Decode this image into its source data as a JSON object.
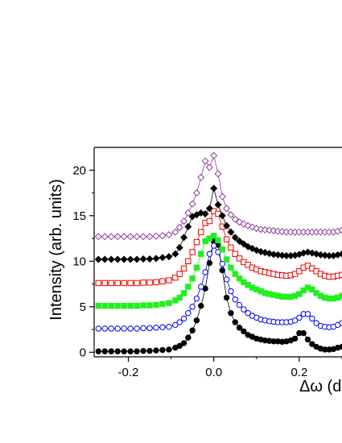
{
  "chart_data": {
    "type": "scatter",
    "title": "",
    "xlabel": "Δω (d",
    "ylabel": "Intensity (arb. units)",
    "xlim": [
      -0.28,
      0.3
    ],
    "ylim": [
      -0.5,
      22.5
    ],
    "xticks": [
      -0.2,
      0.0,
      0.2
    ],
    "xtick_labels": [
      "-0.2",
      "0.0",
      "0.2"
    ],
    "yticks": [
      0,
      5,
      10,
      15,
      20
    ],
    "ytick_labels": [
      "0",
      "5",
      "10",
      "15",
      "20"
    ],
    "grid": false,
    "legend": "none",
    "series": [
      {
        "marker": "filled-circle",
        "color": "#000000",
        "x": [
          -0.27,
          -0.255,
          -0.24,
          -0.225,
          -0.21,
          -0.195,
          -0.18,
          -0.165,
          -0.15,
          -0.135,
          -0.12,
          -0.105,
          -0.09,
          -0.08,
          -0.07,
          -0.06,
          -0.05,
          -0.04,
          -0.03,
          -0.02,
          -0.01,
          0.0,
          0.01,
          0.02,
          0.03,
          0.04,
          0.05,
          0.06,
          0.07,
          0.08,
          0.09,
          0.1,
          0.11,
          0.12,
          0.13,
          0.14,
          0.15,
          0.16,
          0.17,
          0.18,
          0.19,
          0.2,
          0.21,
          0.22,
          0.23,
          0.24,
          0.25,
          0.26,
          0.27,
          0.28,
          0.29,
          0.3
        ],
        "y": [
          0.1,
          0.1,
          0.1,
          0.1,
          0.1,
          0.1,
          0.1,
          0.15,
          0.15,
          0.2,
          0.25,
          0.3,
          0.5,
          0.7,
          1.0,
          1.6,
          2.4,
          3.5,
          5.1,
          7.0,
          9.8,
          12.2,
          11.8,
          9.0,
          6.0,
          4.3,
          3.3,
          2.7,
          2.3,
          1.9,
          1.7,
          1.5,
          1.4,
          1.3,
          1.25,
          1.2,
          1.2,
          1.15,
          1.2,
          1.3,
          1.5,
          2.1,
          2.1,
          1.4,
          0.9,
          0.6,
          0.4,
          0.3,
          0.3,
          0.35,
          0.5,
          0.6
        ]
      },
      {
        "marker": "open-circle",
        "color": "#0000ee",
        "x": [
          -0.27,
          -0.255,
          -0.24,
          -0.225,
          -0.21,
          -0.195,
          -0.18,
          -0.165,
          -0.15,
          -0.135,
          -0.12,
          -0.105,
          -0.09,
          -0.08,
          -0.07,
          -0.06,
          -0.05,
          -0.04,
          -0.03,
          -0.02,
          -0.01,
          0.0,
          0.01,
          0.02,
          0.03,
          0.04,
          0.05,
          0.06,
          0.07,
          0.08,
          0.09,
          0.1,
          0.11,
          0.12,
          0.13,
          0.14,
          0.15,
          0.16,
          0.17,
          0.18,
          0.19,
          0.2,
          0.21,
          0.22,
          0.23,
          0.24,
          0.25,
          0.26,
          0.27,
          0.28,
          0.29,
          0.3
        ],
        "y": [
          2.6,
          2.6,
          2.6,
          2.6,
          2.6,
          2.6,
          2.6,
          2.65,
          2.65,
          2.7,
          2.75,
          2.8,
          3.0,
          3.3,
          3.7,
          4.3,
          5.0,
          5.9,
          7.2,
          8.8,
          10.8,
          11.7,
          11.0,
          9.7,
          8.0,
          6.7,
          5.8,
          5.2,
          4.7,
          4.3,
          4.0,
          3.8,
          3.6,
          3.5,
          3.4,
          3.35,
          3.3,
          3.3,
          3.3,
          3.35,
          3.5,
          3.8,
          4.2,
          4.2,
          3.7,
          3.2,
          2.9,
          2.8,
          2.75,
          2.8,
          3.0,
          3.2
        ]
      },
      {
        "marker": "filled-square",
        "color": "#22ee22",
        "x": [
          -0.27,
          -0.255,
          -0.24,
          -0.225,
          -0.21,
          -0.195,
          -0.18,
          -0.165,
          -0.15,
          -0.135,
          -0.12,
          -0.105,
          -0.09,
          -0.08,
          -0.07,
          -0.06,
          -0.05,
          -0.04,
          -0.03,
          -0.02,
          -0.01,
          0.0,
          0.01,
          0.02,
          0.03,
          0.04,
          0.05,
          0.06,
          0.07,
          0.08,
          0.09,
          0.1,
          0.11,
          0.12,
          0.13,
          0.14,
          0.15,
          0.16,
          0.17,
          0.18,
          0.19,
          0.2,
          0.21,
          0.22,
          0.23,
          0.24,
          0.25,
          0.26,
          0.27,
          0.28,
          0.29,
          0.3
        ],
        "y": [
          5.1,
          5.1,
          5.1,
          5.1,
          5.1,
          5.1,
          5.1,
          5.15,
          5.15,
          5.2,
          5.3,
          5.4,
          5.7,
          6.0,
          6.5,
          7.2,
          8.1,
          9.3,
          10.8,
          12.2,
          12.5,
          12.8,
          12.3,
          11.3,
          10.2,
          9.3,
          8.6,
          8.1,
          7.7,
          7.4,
          7.1,
          6.9,
          6.7,
          6.5,
          6.4,
          6.3,
          6.2,
          6.1,
          6.1,
          6.1,
          6.2,
          6.4,
          6.8,
          7.1,
          6.9,
          6.5,
          6.2,
          6.0,
          5.9,
          5.9,
          6.0,
          6.2
        ]
      },
      {
        "marker": "open-square",
        "color": "#ee0000",
        "x": [
          -0.27,
          -0.255,
          -0.24,
          -0.225,
          -0.21,
          -0.195,
          -0.18,
          -0.165,
          -0.15,
          -0.135,
          -0.12,
          -0.105,
          -0.09,
          -0.08,
          -0.07,
          -0.06,
          -0.05,
          -0.04,
          -0.03,
          -0.02,
          -0.01,
          0.0,
          0.01,
          0.02,
          0.03,
          0.04,
          0.05,
          0.06,
          0.07,
          0.08,
          0.09,
          0.1,
          0.11,
          0.12,
          0.13,
          0.14,
          0.15,
          0.16,
          0.17,
          0.18,
          0.19,
          0.2,
          0.21,
          0.22,
          0.23,
          0.24,
          0.25,
          0.26,
          0.27,
          0.28,
          0.29,
          0.3
        ],
        "y": [
          7.6,
          7.6,
          7.6,
          7.6,
          7.6,
          7.6,
          7.6,
          7.65,
          7.65,
          7.7,
          7.8,
          7.9,
          8.2,
          8.6,
          9.2,
          10.0,
          11.0,
          12.1,
          13.2,
          14.2,
          14.4,
          15.5,
          15.2,
          13.8,
          12.4,
          11.5,
          10.8,
          10.3,
          9.9,
          9.6,
          9.3,
          9.1,
          8.9,
          8.8,
          8.7,
          8.6,
          8.5,
          8.45,
          8.4,
          8.45,
          8.6,
          8.9,
          9.3,
          9.5,
          9.2,
          8.9,
          8.6,
          8.4,
          8.3,
          8.3,
          8.4,
          8.5
        ]
      },
      {
        "marker": "filled-diamond",
        "color": "#000000",
        "x": [
          -0.27,
          -0.255,
          -0.24,
          -0.225,
          -0.21,
          -0.195,
          -0.18,
          -0.165,
          -0.15,
          -0.135,
          -0.12,
          -0.105,
          -0.09,
          -0.08,
          -0.07,
          -0.06,
          -0.05,
          -0.04,
          -0.03,
          -0.02,
          -0.01,
          0.0,
          0.01,
          0.02,
          0.03,
          0.04,
          0.05,
          0.06,
          0.07,
          0.08,
          0.09,
          0.1,
          0.11,
          0.12,
          0.13,
          0.14,
          0.15,
          0.16,
          0.17,
          0.18,
          0.19,
          0.2,
          0.21,
          0.22,
          0.23,
          0.24,
          0.25,
          0.26,
          0.27,
          0.28,
          0.29,
          0.3
        ],
        "y": [
          10.2,
          10.2,
          10.2,
          10.2,
          10.2,
          10.2,
          10.2,
          10.25,
          10.25,
          10.3,
          10.4,
          10.5,
          10.8,
          11.5,
          12.6,
          13.8,
          14.9,
          15.1,
          15.3,
          15.2,
          15.8,
          18.0,
          16.2,
          15.0,
          13.9,
          13.2,
          12.6,
          12.2,
          11.9,
          11.6,
          11.4,
          11.2,
          11.05,
          10.95,
          10.85,
          10.75,
          10.7,
          10.65,
          10.6,
          10.6,
          10.65,
          10.75,
          10.9,
          11.0,
          10.9,
          10.8,
          10.7,
          10.65,
          10.6,
          10.6,
          10.7,
          10.8
        ]
      },
      {
        "marker": "open-diamond",
        "color": "#8e3c9c",
        "x": [
          -0.27,
          -0.255,
          -0.24,
          -0.225,
          -0.21,
          -0.195,
          -0.18,
          -0.165,
          -0.15,
          -0.135,
          -0.12,
          -0.105,
          -0.09,
          -0.08,
          -0.07,
          -0.06,
          -0.05,
          -0.04,
          -0.03,
          -0.02,
          -0.01,
          0.0,
          0.01,
          0.02,
          0.03,
          0.04,
          0.05,
          0.06,
          0.07,
          0.08,
          0.09,
          0.1,
          0.11,
          0.12,
          0.13,
          0.14,
          0.15,
          0.16,
          0.17,
          0.18,
          0.19,
          0.2,
          0.21,
          0.22,
          0.23,
          0.24,
          0.25,
          0.26,
          0.27,
          0.28,
          0.29,
          0.3
        ],
        "y": [
          12.7,
          12.7,
          12.7,
          12.7,
          12.7,
          12.7,
          12.7,
          12.7,
          12.7,
          12.75,
          12.8,
          12.9,
          13.2,
          13.7,
          14.4,
          15.3,
          16.3,
          17.5,
          19.2,
          21.0,
          20.3,
          21.6,
          19.6,
          17.1,
          15.8,
          15.1,
          14.6,
          14.3,
          14.1,
          13.9,
          13.75,
          13.6,
          13.5,
          13.45,
          13.4,
          13.35,
          13.3,
          13.25,
          13.2,
          13.2,
          13.2,
          13.2,
          13.2,
          13.2,
          13.2,
          13.2,
          13.2,
          13.2,
          13.2,
          13.2,
          13.3,
          13.4
        ]
      }
    ]
  }
}
